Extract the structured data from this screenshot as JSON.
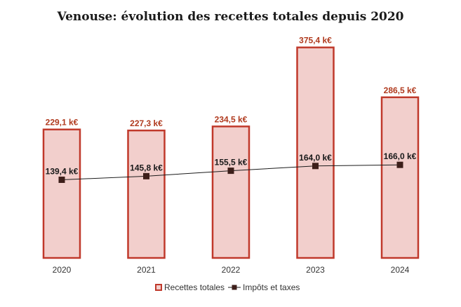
{
  "chart_data": {
    "type": "bar",
    "title": "Venouse: évolution des recettes totales depuis 2020",
    "categories": [
      "2020",
      "2021",
      "2022",
      "2023",
      "2024"
    ],
    "series": [
      {
        "name": "Recettes totales",
        "kind": "bar",
        "values": [
          229.1,
          227.3,
          234.5,
          375.4,
          286.5
        ],
        "labels": [
          "229,1 k€",
          "227,3 k€",
          "234,5 k€",
          "375,4 k€",
          "286,5 k€"
        ]
      },
      {
        "name": "Impôts et taxes",
        "kind": "line",
        "values": [
          139.4,
          145.8,
          155.5,
          164.0,
          166.0
        ],
        "labels": [
          "139,4 k€",
          "145,8 k€",
          "155,5 k€",
          "164,0 k€",
          "166,0 k€"
        ]
      }
    ],
    "ylim": [
      0,
      400
    ],
    "grid": false,
    "legend": "bottom",
    "colors": {
      "bar_fill": "#f2cfcc",
      "bar_stroke": "#c0392b",
      "bar_label": "#b03a1e",
      "line": "#1a1a1a",
      "marker": "#3d1f1a"
    }
  }
}
